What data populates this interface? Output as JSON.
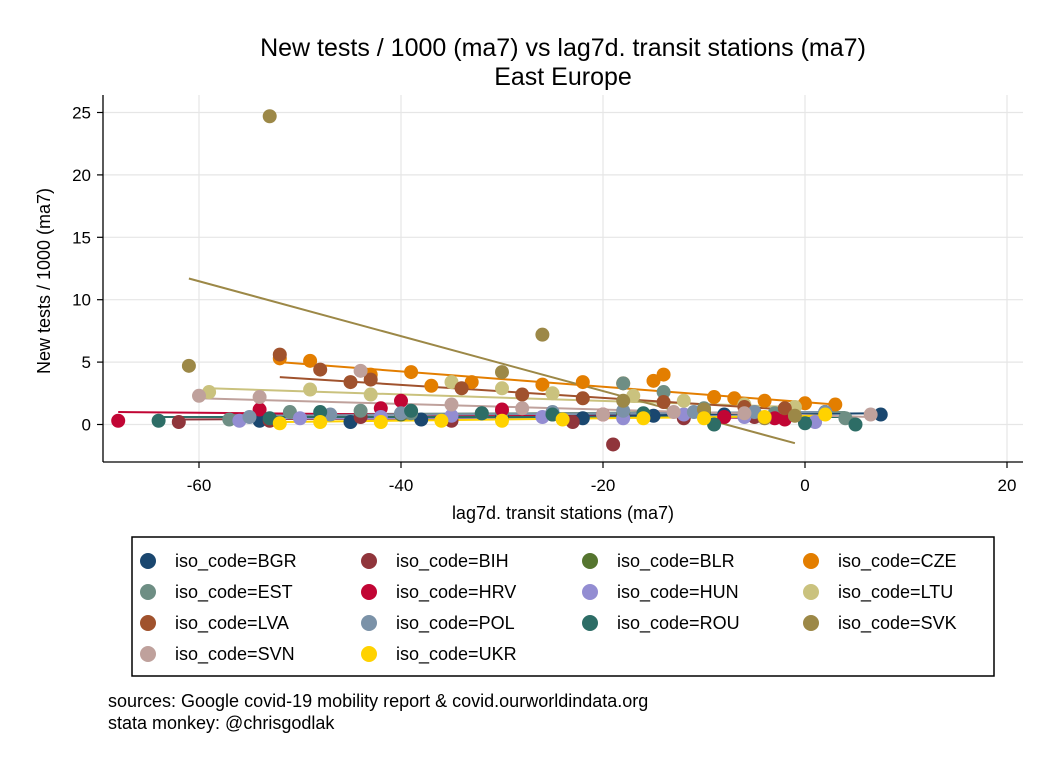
{
  "chart_data": {
    "type": "scatter",
    "title": "New tests / 1000 (ma7) vs lag7d. transit stations (ma7)",
    "subtitle": "East Europe",
    "xlabel": "lag7d. transit stations (ma7)",
    "ylabel": "New tests / 1000 (ma7)",
    "xlim": [
      -70,
      22
    ],
    "ylim": [
      -3,
      26
    ],
    "xticks": [
      -60,
      -40,
      -20,
      0,
      20
    ],
    "yticks": [
      0,
      5,
      10,
      15,
      20,
      25
    ],
    "grid": true,
    "legend_position": "bottom",
    "fit_lines": true,
    "series": [
      {
        "name": "iso_code=BGR",
        "color": "#1a476f",
        "points": [
          [
            -54,
            0.3
          ],
          [
            -45,
            0.2
          ],
          [
            -38,
            0.4
          ],
          [
            -30,
            0.6
          ],
          [
            -22,
            0.5
          ],
          [
            -15,
            0.7
          ],
          [
            -8,
            0.8
          ],
          [
            -2,
            0.9
          ],
          [
            2,
            1.0
          ],
          [
            7.5,
            0.8
          ]
        ],
        "fit": [
          [
            -54,
            0.5
          ],
          [
            7.5,
            0.9
          ]
        ]
      },
      {
        "name": "iso_code=BIH",
        "color": "#90353b",
        "points": [
          [
            -62,
            0.2
          ],
          [
            -53,
            0.3
          ],
          [
            -44,
            0.6
          ],
          [
            -35,
            0.3
          ],
          [
            -23,
            0.2
          ],
          [
            -19,
            -1.6
          ],
          [
            -12,
            0.5
          ],
          [
            -5,
            0.6
          ]
        ],
        "fit": [
          [
            -62,
            0.4
          ],
          [
            -5,
            0.6
          ]
        ]
      },
      {
        "name": "iso_code=BLR",
        "color": "#55752f",
        "points": [
          [
            -40,
            0.8
          ],
          [
            -32,
            0.9
          ],
          [
            -25,
            0.8
          ],
          [
            -18,
            0.9
          ],
          [
            -10,
            1.0
          ]
        ],
        "fit": [
          [
            -40,
            0.8
          ],
          [
            -10,
            1.0
          ]
        ]
      },
      {
        "name": "iso_code=CZE",
        "color": "#e37e00",
        "points": [
          [
            -52,
            5.3
          ],
          [
            -49,
            5.1
          ],
          [
            -43,
            4.0
          ],
          [
            -39,
            4.2
          ],
          [
            -37,
            3.1
          ],
          [
            -33,
            3.4
          ],
          [
            -26,
            3.2
          ],
          [
            -22,
            3.4
          ],
          [
            -18,
            3.3
          ],
          [
            -15,
            3.5
          ],
          [
            -14,
            4.0
          ],
          [
            -9,
            2.2
          ],
          [
            -7,
            2.1
          ],
          [
            -4,
            1.9
          ],
          [
            0,
            1.7
          ],
          [
            3,
            1.6
          ]
        ],
        "fit": [
          [
            -52,
            5.0
          ],
          [
            3,
            1.6
          ]
        ]
      },
      {
        "name": "iso_code=EST",
        "color": "#6e8e84",
        "points": [
          [
            -57,
            0.4
          ],
          [
            -51,
            1.0
          ],
          [
            -44,
            1.1
          ],
          [
            -39,
            0.9
          ],
          [
            -30,
            1.0
          ],
          [
            -18,
            3.3
          ],
          [
            -14,
            2.6
          ],
          [
            -10,
            1.3
          ],
          [
            -3,
            0.9
          ],
          [
            4,
            0.5
          ]
        ],
        "fit": [
          [
            -57,
            0.8
          ],
          [
            4,
            1.0
          ]
        ]
      },
      {
        "name": "iso_code=HRV",
        "color": "#c10534",
        "points": [
          [
            -68,
            0.3
          ],
          [
            -54,
            1.2
          ],
          [
            -42,
            1.3
          ],
          [
            -40,
            1.9
          ],
          [
            -30,
            1.2
          ],
          [
            -20,
            0.8
          ],
          [
            -8,
            0.6
          ],
          [
            -3,
            0.5
          ],
          [
            -2,
            0.4
          ]
        ],
        "fit": [
          [
            -68,
            1.0
          ],
          [
            -2,
            0.5
          ]
        ]
      },
      {
        "name": "iso_code=HUN",
        "color": "#938dd2",
        "points": [
          [
            -56,
            0.3
          ],
          [
            -50,
            0.5
          ],
          [
            -42,
            0.6
          ],
          [
            -35,
            0.7
          ],
          [
            -26,
            0.6
          ],
          [
            -18,
            0.5
          ],
          [
            -12,
            0.8
          ],
          [
            -6,
            0.6
          ],
          [
            1,
            0.2
          ]
        ],
        "fit": [
          [
            -56,
            0.5
          ],
          [
            1,
            0.6
          ]
        ]
      },
      {
        "name": "iso_code=LTU",
        "color": "#cac27e",
        "points": [
          [
            -59,
            2.6
          ],
          [
            -49,
            2.8
          ],
          [
            -43,
            2.4
          ],
          [
            -35,
            3.4
          ],
          [
            -30,
            2.9
          ],
          [
            -25,
            2.5
          ],
          [
            -17,
            2.3
          ],
          [
            -12,
            1.9
          ],
          [
            -6,
            1.6
          ],
          [
            -1,
            1.4
          ]
        ],
        "fit": [
          [
            -59,
            2.9
          ],
          [
            -1,
            1.4
          ]
        ]
      },
      {
        "name": "iso_code=LVA",
        "color": "#a0522d",
        "points": [
          [
            -52,
            5.6
          ],
          [
            -48,
            4.4
          ],
          [
            -45,
            3.4
          ],
          [
            -43,
            3.6
          ],
          [
            -34,
            2.9
          ],
          [
            -28,
            2.4
          ],
          [
            -22,
            2.1
          ],
          [
            -14,
            1.8
          ],
          [
            -6,
            1.4
          ],
          [
            -2,
            1.3
          ]
        ],
        "fit": [
          [
            -52,
            3.8
          ],
          [
            -2,
            1.2
          ]
        ]
      },
      {
        "name": "iso_code=POL",
        "color": "#7b92a8",
        "points": [
          [
            -55,
            0.6
          ],
          [
            -47,
            0.8
          ],
          [
            -40,
            0.9
          ],
          [
            -32,
            0.9
          ],
          [
            -25,
            1.0
          ],
          [
            -18,
            1.1
          ],
          [
            -11,
            1.0
          ],
          [
            -5,
            1.0
          ],
          [
            2,
            1.0
          ]
        ],
        "fit": [
          [
            -55,
            0.7
          ],
          [
            2,
            1.0
          ]
        ]
      },
      {
        "name": "iso_code=ROU",
        "color": "#2d6d66",
        "points": [
          [
            -64,
            0.3
          ],
          [
            -53,
            0.5
          ],
          [
            -48,
            1.0
          ],
          [
            -39,
            1.1
          ],
          [
            -32,
            0.9
          ],
          [
            -25,
            0.8
          ],
          [
            -16,
            0.9
          ],
          [
            -9,
            0.0
          ],
          [
            0,
            0.1
          ],
          [
            5,
            0.0
          ]
        ],
        "fit": [
          [
            -64,
            0.6
          ],
          [
            5,
            0.6
          ]
        ]
      },
      {
        "name": "iso_code=SVK",
        "color": "#9c8847",
        "points": [
          [
            -61,
            4.7
          ],
          [
            -53,
            24.7
          ],
          [
            -30,
            4.2
          ],
          [
            -26,
            7.2
          ],
          [
            -18,
            1.9
          ],
          [
            -10,
            1.2
          ],
          [
            -4,
            0.5
          ],
          [
            -1,
            0.7
          ]
        ],
        "fit": [
          [
            -61,
            11.7
          ],
          [
            -1,
            -1.5
          ]
        ]
      },
      {
        "name": "iso_code=SVN",
        "color": "#bfa19c",
        "points": [
          [
            -60,
            2.3
          ],
          [
            -54,
            2.2
          ],
          [
            -44,
            4.3
          ],
          [
            -35,
            1.6
          ],
          [
            -28,
            1.3
          ],
          [
            -20,
            0.8
          ],
          [
            -13,
            1.0
          ],
          [
            -6,
            0.9
          ],
          [
            6.5,
            0.8
          ]
        ],
        "fit": [
          [
            -60,
            2.1
          ],
          [
            6.5,
            0.6
          ]
        ]
      },
      {
        "name": "iso_code=UKR",
        "color": "#ffd200",
        "points": [
          [
            -52,
            0.1
          ],
          [
            -48,
            0.2
          ],
          [
            -42,
            0.2
          ],
          [
            -36,
            0.3
          ],
          [
            -30,
            0.3
          ],
          [
            -24,
            0.4
          ],
          [
            -16,
            0.5
          ],
          [
            -10,
            0.5
          ],
          [
            -4,
            0.6
          ],
          [
            2,
            0.8
          ]
        ],
        "fit": [
          [
            -52,
            0.2
          ],
          [
            2,
            0.7
          ]
        ]
      }
    ]
  },
  "notes": {
    "line1": "sources: Google covid-19 mobility report & covid.ourworldindata.org",
    "line2": "stata monkey: @chrisgodlak"
  }
}
